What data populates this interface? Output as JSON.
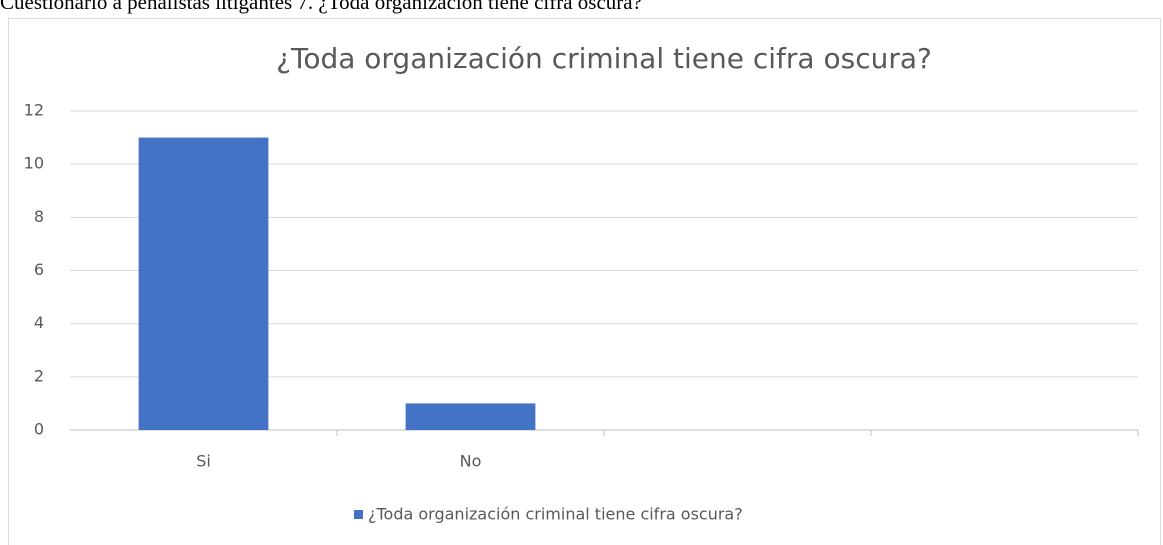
{
  "caption": "Cuestionario a penalistas litigantes 7. ¿Toda organización tiene cifra oscura?",
  "chart_data": {
    "type": "bar",
    "title": "¿Toda organización criminal tiene cifra oscura?",
    "categories": [
      "Si",
      "No",
      null,
      null
    ],
    "series": [
      {
        "name": "¿Toda organización criminal tiene cifra oscura?",
        "color": "#4472c4",
        "values": [
          11,
          1,
          null,
          null
        ]
      }
    ],
    "ylim": [
      0,
      12
    ],
    "yticks": [
      0,
      2,
      4,
      6,
      8,
      10,
      12
    ],
    "grid": true,
    "legend": "bottom"
  }
}
